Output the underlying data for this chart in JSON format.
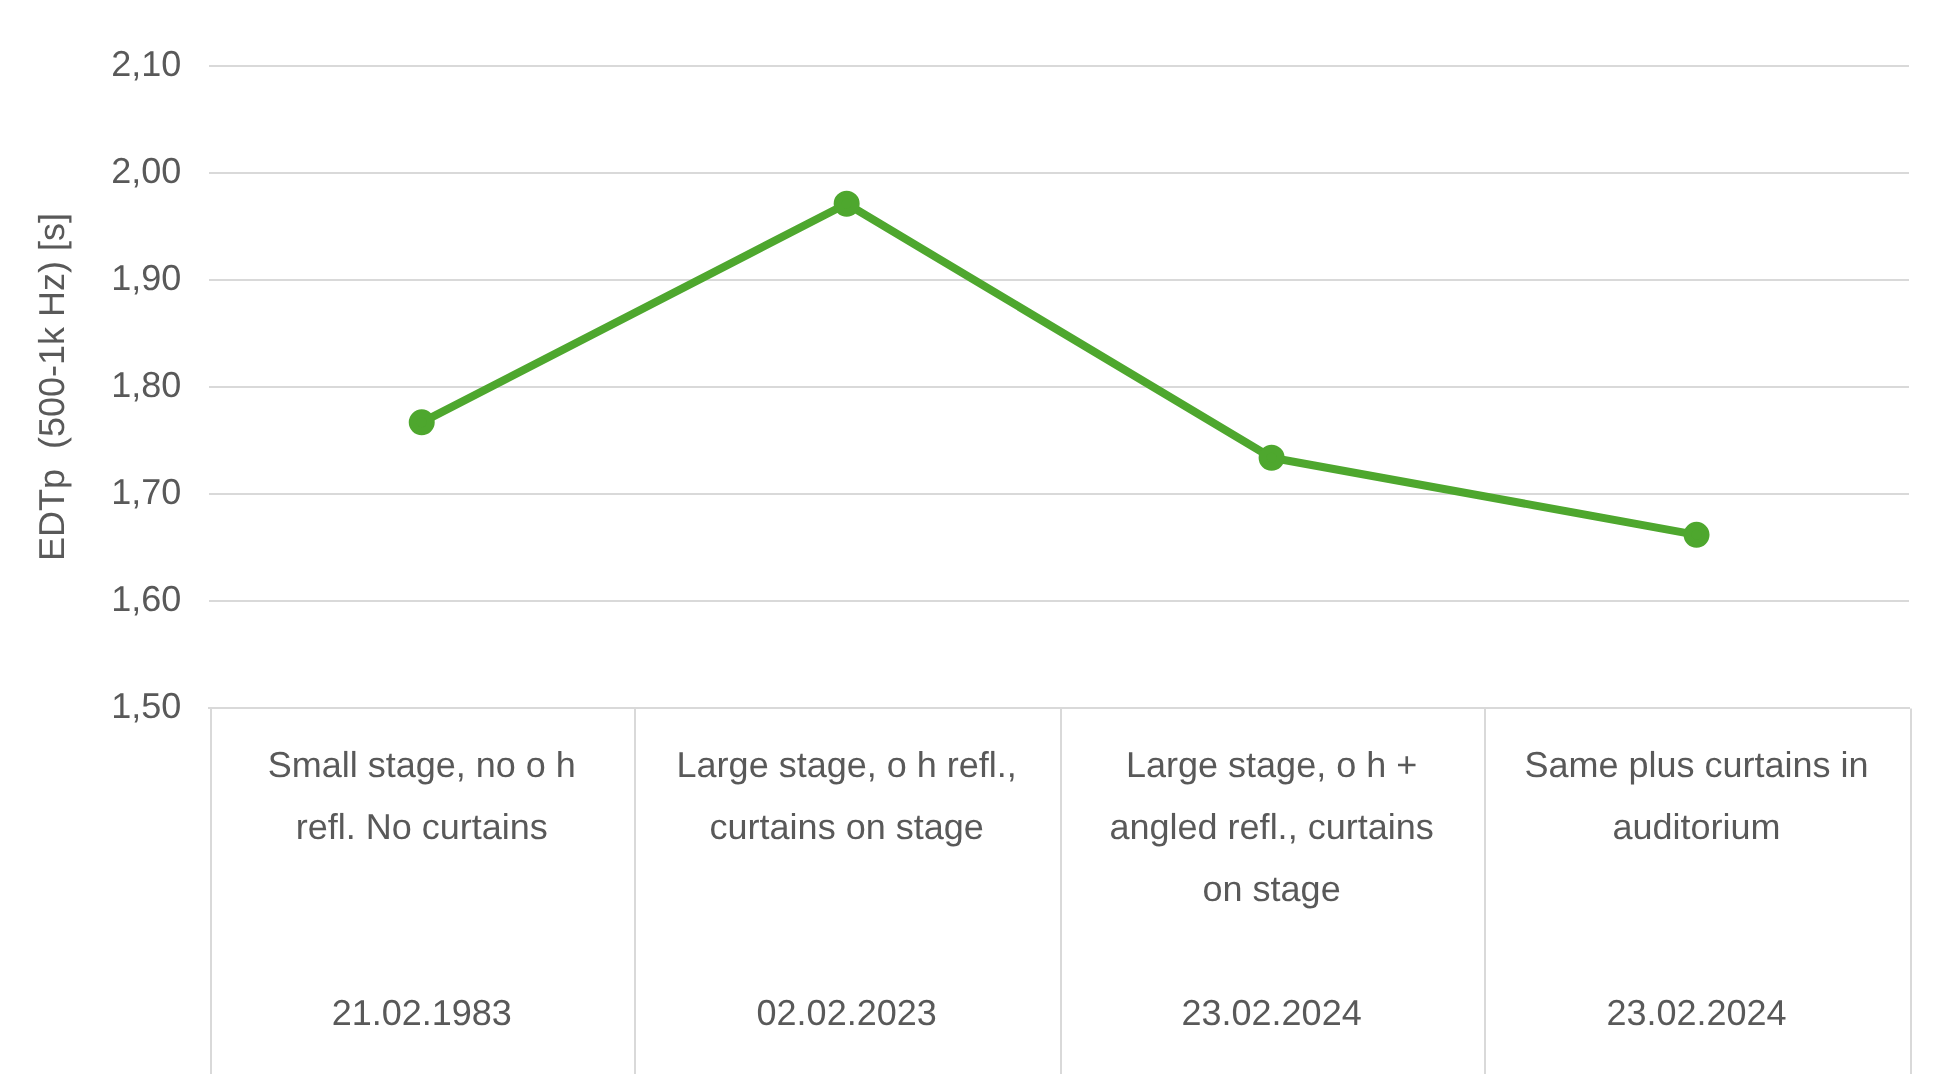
{
  "chart_data": {
    "type": "line",
    "ylabel": "EDTp  (500-1k Hz) [s]",
    "categories": [
      "Small stage, no o h refl. No curtains\n21.02.1983",
      "Large stage, o h refl., curtains on stage\n02.02.2023",
      "Large stage, o h + angled refl., curtains on stage\n23.02.2024",
      "Same plus curtains in auditorium\n23.02.2024"
    ],
    "series": [
      {
        "color": "#4ea72e",
        "values": [
          1.767,
          1.971,
          1.734,
          1.662
        ]
      }
    ],
    "ylim": [
      1.5,
      2.1
    ],
    "yticks": [
      {
        "value": 1.5,
        "label": "1,50"
      },
      {
        "value": 1.6,
        "label": "1,60"
      },
      {
        "value": 1.7,
        "label": "1,70"
      },
      {
        "value": 1.8,
        "label": "1,80"
      },
      {
        "value": 1.9,
        "label": "1,90"
      },
      {
        "value": 2.0,
        "label": "2,00"
      },
      {
        "value": 2.1,
        "label": "2,10"
      }
    ],
    "grid": "y",
    "marker": "circle",
    "line_style": "solid"
  }
}
